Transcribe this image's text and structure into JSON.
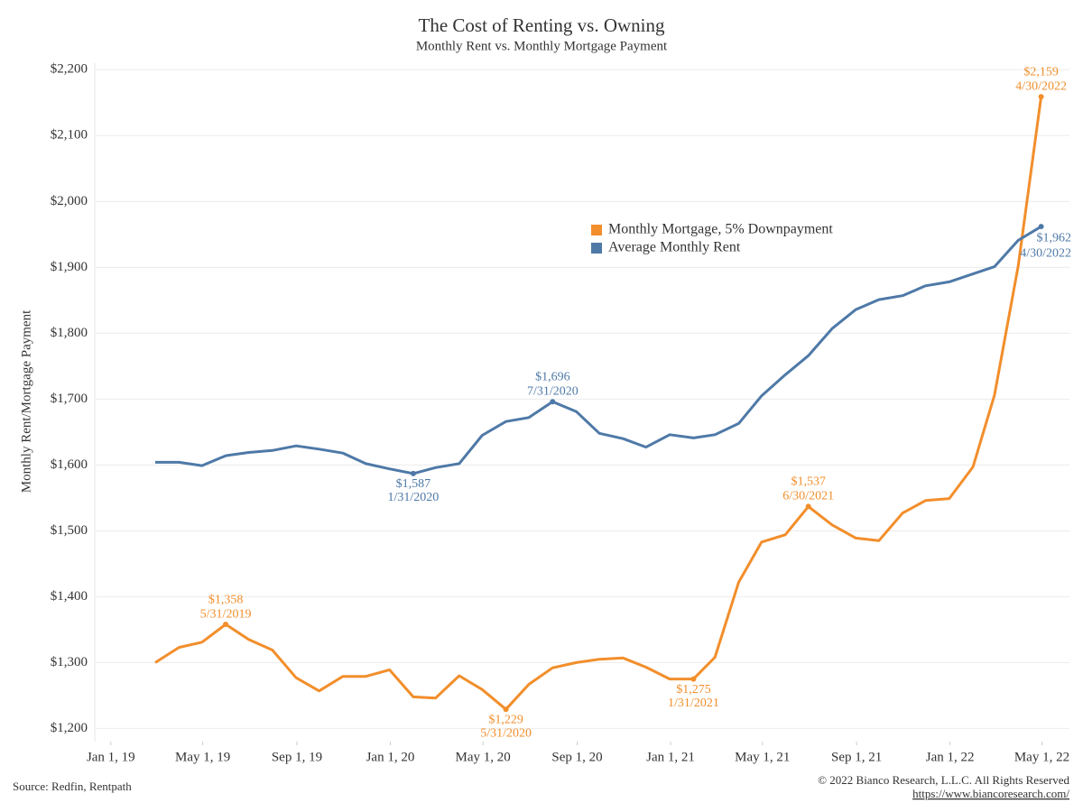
{
  "chart_data": {
    "type": "line",
    "title": "The Cost of Renting vs. Owning",
    "subtitle": "Monthly Rent vs. Monthly Mortgage Payment",
    "y_label": "Monthly Rent/Mortgage Payment",
    "source": "Source: Redfin, Rentpath",
    "copyright": "© 2022 Bianco Research, L.L.C. All Rights Reserved",
    "url": "https://www.biancoresearch.com/",
    "x": [
      "2019-02-28",
      "2019-03-31",
      "2019-04-30",
      "2019-05-31",
      "2019-06-30",
      "2019-07-31",
      "2019-08-31",
      "2019-09-30",
      "2019-10-31",
      "2019-11-30",
      "2019-12-31",
      "2020-01-31",
      "2020-02-29",
      "2020-03-31",
      "2020-04-30",
      "2020-05-31",
      "2020-06-30",
      "2020-07-31",
      "2020-08-31",
      "2020-09-30",
      "2020-10-31",
      "2020-11-30",
      "2020-12-31",
      "2021-01-31",
      "2021-02-28",
      "2021-03-31",
      "2021-04-30",
      "2021-05-31",
      "2021-06-30",
      "2021-07-31",
      "2021-08-31",
      "2021-09-30",
      "2021-10-31",
      "2021-11-30",
      "2021-12-31",
      "2022-01-31",
      "2022-02-28",
      "2022-03-31",
      "2022-04-30"
    ],
    "series": [
      {
        "name": "Monthly Mortgage, 5% Downpayment",
        "color": "#f28e2b",
        "values": [
          1300,
          1323,
          1331,
          1358,
          1335,
          1319,
          1277,
          1257,
          1279,
          1279,
          1289,
          1248,
          1246,
          1280,
          1259,
          1229,
          1267,
          1292,
          1300,
          1305,
          1307,
          1293,
          1275,
          1275,
          1308,
          1422,
          1483,
          1494,
          1537,
          1509,
          1489,
          1485,
          1527,
          1546,
          1549,
          1597,
          1706,
          1902,
          2159
        ]
      },
      {
        "name": "Average Monthly Rent",
        "color": "#4e79a7",
        "values": [
          1604,
          1604,
          1599,
          1614,
          1619,
          1622,
          1629,
          1624,
          1618,
          1602,
          1594,
          1587,
          1596,
          1602,
          1645,
          1666,
          1672,
          1696,
          1681,
          1648,
          1640,
          1627,
          1646,
          1641,
          1646,
          1663,
          1705,
          1737,
          1766,
          1807,
          1836,
          1851,
          1857,
          1872,
          1878,
          1890,
          1901,
          1941,
          1962
        ]
      }
    ],
    "annotations": [
      {
        "series": "Monthly Mortgage, 5% Downpayment",
        "x": "2019-05-31",
        "y": 1358,
        "label": "$1,358",
        "date_label": "5/31/2019",
        "position": "above"
      },
      {
        "series": "Monthly Mortgage, 5% Downpayment",
        "x": "2020-05-31",
        "y": 1229,
        "label": "$1,229",
        "date_label": "5/31/2020",
        "position": "below"
      },
      {
        "series": "Monthly Mortgage, 5% Downpayment",
        "x": "2021-01-31",
        "y": 1275,
        "label": "$1,275",
        "date_label": "1/31/2021",
        "position": "below"
      },
      {
        "series": "Monthly Mortgage, 5% Downpayment",
        "x": "2021-06-30",
        "y": 1537,
        "label": "$1,537",
        "date_label": "6/30/2021",
        "position": "above"
      },
      {
        "series": "Monthly Mortgage, 5% Downpayment",
        "x": "2022-04-30",
        "y": 2159,
        "label": "$2,159",
        "date_label": "4/30/2022",
        "position": "above"
      },
      {
        "series": "Average Monthly Rent",
        "x": "2020-01-31",
        "y": 1587,
        "label": "$1,587",
        "date_label": "1/31/2020",
        "position": "below"
      },
      {
        "series": "Average Monthly Rent",
        "x": "2020-07-31",
        "y": 1696,
        "label": "$1,696",
        "date_label": "7/31/2020",
        "position": "above"
      },
      {
        "series": "Average Monthly Rent",
        "x": "2022-04-30",
        "y": 1962,
        "label": "$1,962",
        "date_label": "4/30/2022",
        "position": "right"
      }
    ],
    "xlim": [
      "2018-12-11",
      "2022-06-06"
    ],
    "xticks": [
      {
        "value": "2019-01-01",
        "label": "Jan 1, 19"
      },
      {
        "value": "2019-05-01",
        "label": "May 1, 19"
      },
      {
        "value": "2019-09-01",
        "label": "Sep 1, 19"
      },
      {
        "value": "2020-01-01",
        "label": "Jan 1, 20"
      },
      {
        "value": "2020-05-01",
        "label": "May 1, 20"
      },
      {
        "value": "2020-09-01",
        "label": "Sep 1, 20"
      },
      {
        "value": "2021-01-01",
        "label": "Jan 1, 21"
      },
      {
        "value": "2021-05-01",
        "label": "May 1, 21"
      },
      {
        "value": "2021-09-01",
        "label": "Sep 1, 21"
      },
      {
        "value": "2022-01-01",
        "label": "Jan 1, 22"
      },
      {
        "value": "2022-05-01",
        "label": "May 1, 22"
      }
    ],
    "ylim": [
      1180,
      2210
    ],
    "yticks": [
      {
        "value": 1200,
        "label": "$1,200"
      },
      {
        "value": 1300,
        "label": "$1,300"
      },
      {
        "value": 1400,
        "label": "$1,400"
      },
      {
        "value": 1500,
        "label": "$1,500"
      },
      {
        "value": 1600,
        "label": "$1,600"
      },
      {
        "value": 1700,
        "label": "$1,700"
      },
      {
        "value": 1800,
        "label": "$1,800"
      },
      {
        "value": 1900,
        "label": "$1,900"
      },
      {
        "value": 2000,
        "label": "$2,000"
      },
      {
        "value": 2100,
        "label": "$2,100"
      },
      {
        "value": 2200,
        "label": "$2,200"
      }
    ],
    "grid": true,
    "legend": "center"
  }
}
